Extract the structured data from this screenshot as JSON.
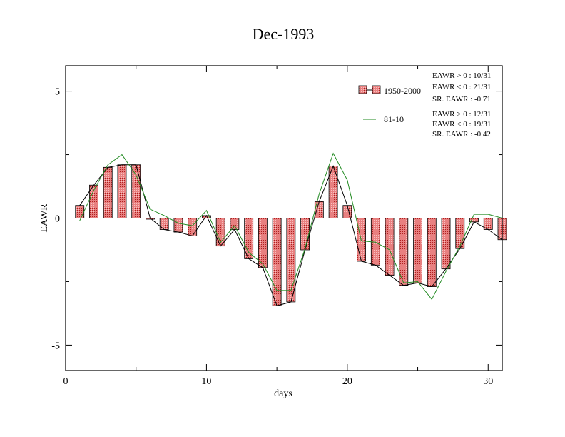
{
  "chart_data": {
    "type": "bar",
    "title": "Dec-1993",
    "xlabel": "days",
    "ylabel": "EAWR",
    "xlim": [
      0,
      31
    ],
    "ylim": [
      -6,
      6
    ],
    "x_ticks": [
      0,
      10,
      20,
      30
    ],
    "y_ticks": [
      -5,
      0,
      5
    ],
    "x_tick_labels": [
      "0",
      "10",
      "20",
      "30"
    ],
    "y_tick_labels": [
      "-5",
      "0",
      "5"
    ],
    "grid": false,
    "legend_position": "top-right",
    "x": [
      1,
      2,
      3,
      4,
      5,
      6,
      7,
      8,
      9,
      10,
      11,
      12,
      13,
      14,
      15,
      16,
      17,
      18,
      19,
      20,
      21,
      22,
      23,
      24,
      25,
      26,
      27,
      28,
      29,
      30,
      31
    ],
    "series": [
      {
        "name": "1950-2000",
        "kind": "bar-with-line",
        "color": "#e06060",
        "line_color": "#000000",
        "values": [
          0.5,
          1.3,
          2.0,
          2.1,
          2.1,
          0.0,
          -0.45,
          -0.55,
          -0.7,
          0.1,
          -1.1,
          -0.45,
          -1.6,
          -1.95,
          -3.45,
          -3.3,
          -1.25,
          0.65,
          2.05,
          0.5,
          -1.7,
          -1.85,
          -2.25,
          -2.65,
          -2.55,
          -2.7,
          -2.0,
          -1.2,
          -0.15,
          -0.45,
          -0.85
        ]
      },
      {
        "name": "81-10",
        "kind": "line",
        "color": "#228b22",
        "values": [
          -0.1,
          1.1,
          2.1,
          2.5,
          1.7,
          0.35,
          0.1,
          -0.2,
          -0.3,
          0.3,
          -0.95,
          -0.3,
          -1.35,
          -1.8,
          -2.85,
          -2.85,
          -1.2,
          0.95,
          2.55,
          1.5,
          -0.9,
          -0.95,
          -1.25,
          -2.55,
          -2.5,
          -3.2,
          -2.1,
          -1.1,
          0.15,
          0.15,
          0.0
        ]
      }
    ],
    "annotations": {
      "set1": [
        "EAWR > 0 : 10/31",
        "EAWR < 0 : 21/31",
        "SR. EAWR : -0.71"
      ],
      "set2": [
        "EAWR > 0 : 12/31",
        "EAWR < 0 : 19/31",
        "SR. EAWR : -0.42"
      ]
    }
  }
}
